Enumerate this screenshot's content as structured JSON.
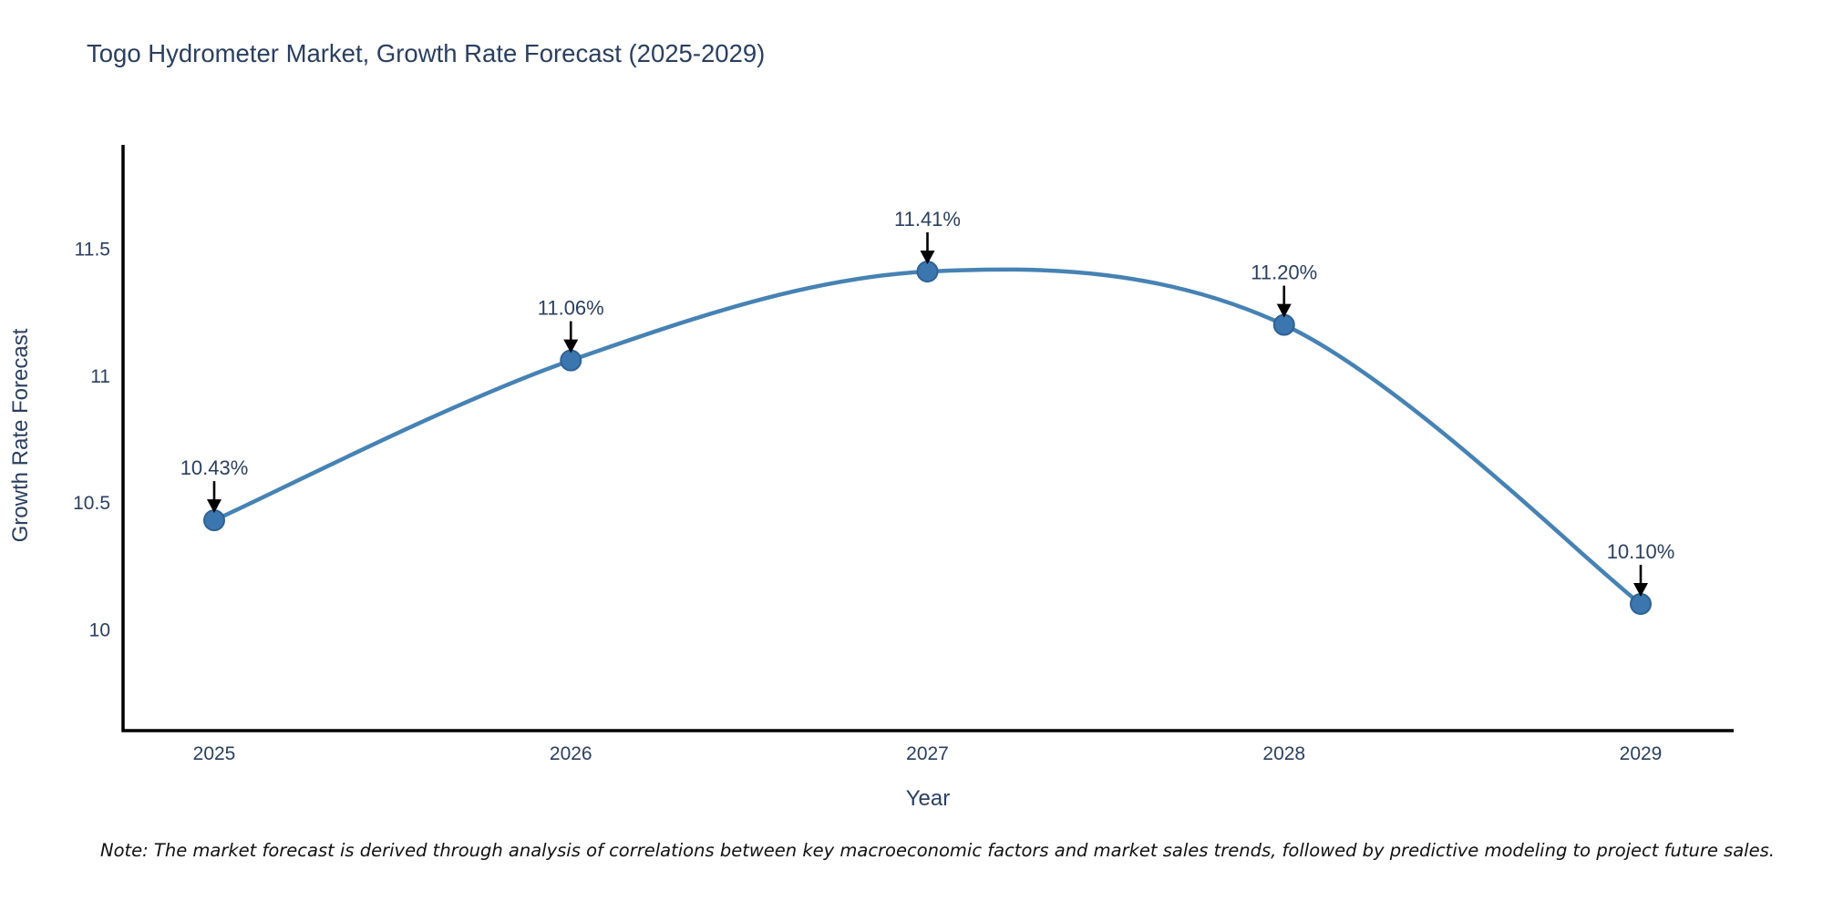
{
  "chart_data": {
    "type": "line",
    "title": "Togo Hydrometer Market, Growth Rate Forecast (2025-2029)",
    "xlabel": "Year",
    "ylabel": "Growth Rate Forecast",
    "categories": [
      "2025",
      "2026",
      "2027",
      "2028",
      "2029"
    ],
    "series": [
      {
        "name": "Growth Rate Forecast",
        "values": [
          10.43,
          11.06,
          11.41,
          11.2,
          10.1
        ],
        "point_labels": [
          "10.43%",
          "11.06%",
          "11.41%",
          "11.20%",
          "10.10%"
        ]
      }
    ],
    "y_ticks": [
      {
        "value": 11.5,
        "label": "11.5"
      },
      {
        "value": 11.0,
        "label": "11"
      },
      {
        "value": 10.5,
        "label": "10.5"
      },
      {
        "value": 10.0,
        "label": "10"
      }
    ],
    "ylim": [
      9.6,
      11.9
    ],
    "grid": false,
    "legend": "none",
    "line_shape": "spline",
    "marker": "circle",
    "annotation_style": "value-labels-with-down-arrows",
    "colors": {
      "line": "#4682b4",
      "marker_fill": "#3c76ae",
      "marker_edge": "#2e6295",
      "text": "#2a3f5f",
      "axis": "#000000",
      "arrow": "#000000",
      "note_text": "#111111",
      "background": "#ffffff"
    },
    "note": "Note: The market forecast is derived through analysis of correlations between key macroeconomic factors and market sales trends, followed by predictive modeling to project future sales."
  }
}
